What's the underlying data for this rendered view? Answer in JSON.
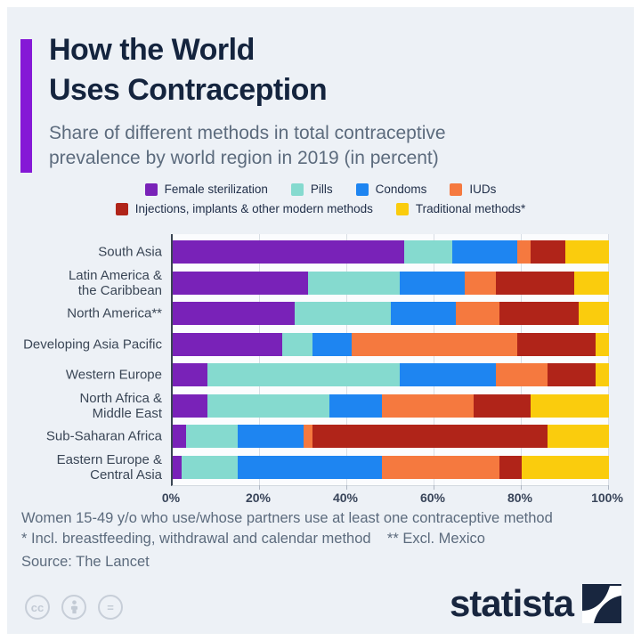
{
  "header": {
    "title": "How the World\nUses Contraception",
    "subtitle": "Share of different methods in total contraceptive\nprevalence by world region in 2019 (in percent)"
  },
  "colors": {
    "accent_purple": "#8518d6",
    "title_navy": "#14243e",
    "card_background": "#edf1f6",
    "plot_background": "#fbfcfe",
    "gridline": "#d9dee5",
    "axis_line": "#3a4553",
    "brand_navy": "#18263f"
  },
  "chart_data": {
    "type": "bar",
    "orientation": "horizontal-stacked",
    "unit": "percent",
    "title": "How the World Uses Contraception",
    "subtitle": "Share of different methods in total contraceptive prevalence by world region in 2019 (in percent)",
    "categories": [
      "South Asia",
      "Latin America &\nthe Caribbean",
      "North America**",
      "Developing Asia Pacific",
      "Western Europe",
      "North Africa &\nMiddle East",
      "Sub-Saharan Africa",
      "Eastern Europe &\nCentral Asia"
    ],
    "series": [
      {
        "name": "Female sterilization",
        "color": "#7922b8",
        "values": [
          53,
          31,
          28,
          25,
          8,
          8,
          3,
          2
        ]
      },
      {
        "name": "Pills",
        "color": "#85dacf",
        "values": [
          11,
          21,
          22,
          7,
          44,
          28,
          12,
          13
        ]
      },
      {
        "name": "Condoms",
        "color": "#1e85f1",
        "values": [
          15,
          15,
          15,
          9,
          22,
          12,
          15,
          33
        ]
      },
      {
        "name": "IUDs",
        "color": "#f5793f",
        "values": [
          3,
          7,
          10,
          38,
          12,
          21,
          2,
          27
        ]
      },
      {
        "name": "Injections, implants & other modern methods",
        "color": "#b02419",
        "values": [
          8,
          18,
          18,
          18,
          11,
          13,
          54,
          5
        ]
      },
      {
        "name": "Traditional methods*",
        "color": "#facc0d",
        "values": [
          10,
          8,
          7,
          3,
          3,
          18,
          14,
          20
        ]
      }
    ],
    "x_ticks": [
      "0%",
      "20%",
      "40%",
      "60%",
      "80%",
      "100%"
    ],
    "xlim": [
      0,
      100
    ],
    "grid": true,
    "legend_position": "top",
    "legend_rows": [
      [
        0,
        1,
        2,
        3
      ],
      [
        4,
        5
      ]
    ]
  },
  "footer": {
    "line1": "Women 15-49 y/o who use/whose partners use at least one contraceptive method",
    "line2": "* Incl. breastfeeding, withdrawal and calendar method    ** Excl. Mexico",
    "line3": "Source: The Lancet"
  },
  "branding": {
    "logo_text": "statista",
    "cc_badge_1": "cc",
    "cc_badge_2": "attribution-person",
    "cc_badge_3": "="
  }
}
